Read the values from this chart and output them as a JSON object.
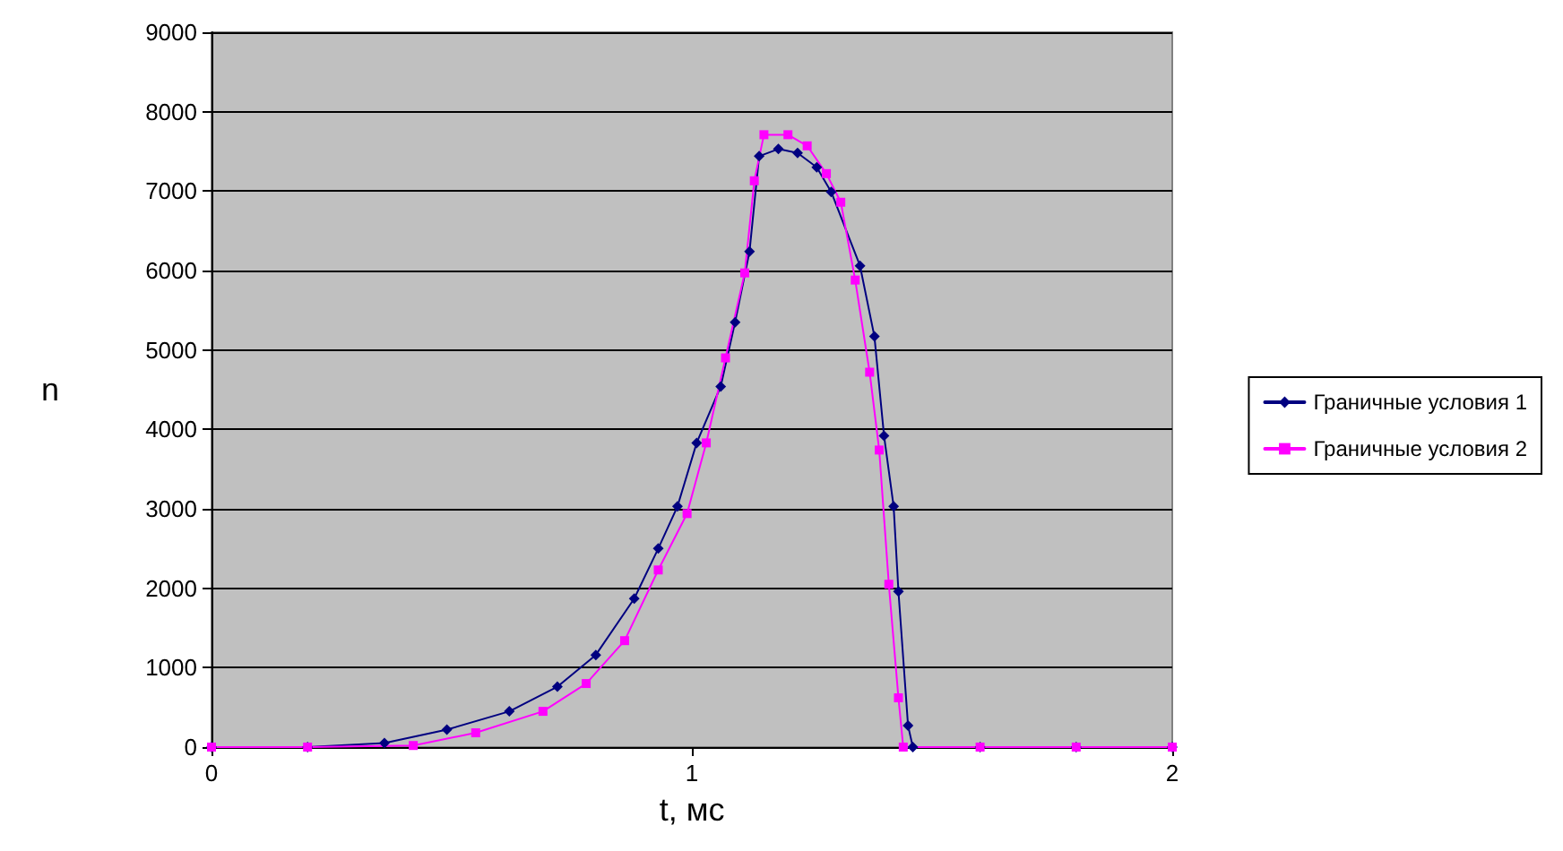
{
  "chart_data": {
    "type": "line",
    "xlabel": "t, мс",
    "ylabel": "n",
    "xlim": [
      0,
      2
    ],
    "xticks": [
      0,
      1,
      2
    ],
    "ylim": [
      0,
      9000
    ],
    "yticks": [
      0,
      1000,
      2000,
      3000,
      4000,
      5000,
      6000,
      7000,
      8000,
      9000
    ],
    "grid": "y",
    "legend": "right",
    "line_style": "solid",
    "series": [
      {
        "name": "Граничные условия 1",
        "color": "#000080",
        "marker": "diamond",
        "x": [
          0,
          0.2,
          0.36,
          0.49,
          0.62,
          0.72,
          0.8,
          0.88,
          0.93,
          0.97,
          1.01,
          1.06,
          1.09,
          1.12,
          1.14,
          1.18,
          1.22,
          1.26,
          1.29,
          1.35,
          1.38,
          1.4,
          1.42,
          1.43,
          1.45,
          1.46,
          1.6,
          1.8,
          2
        ],
        "values": [
          0,
          0,
          50,
          220,
          450,
          760,
          1160,
          1870,
          2500,
          3030,
          3830,
          4540,
          5350,
          6240,
          7440,
          7530,
          7480,
          7300,
          6990,
          6060,
          5170,
          3920,
          3030,
          1960,
          270,
          0,
          0,
          0,
          0
        ]
      },
      {
        "name": "Граничные условия 2",
        "color": "#ff00ff",
        "marker": "square",
        "x": [
          0,
          0.2,
          0.42,
          0.55,
          0.69,
          0.78,
          0.86,
          0.93,
          0.99,
          1.03,
          1.07,
          1.11,
          1.13,
          1.15,
          1.2,
          1.24,
          1.28,
          1.31,
          1.34,
          1.37,
          1.39,
          1.41,
          1.43,
          1.44,
          1.6,
          1.8,
          2
        ],
        "values": [
          0,
          0,
          20,
          180,
          450,
          800,
          1340,
          2230,
          2940,
          3830,
          4900,
          5970,
          7130,
          7710,
          7710,
          7570,
          7220,
          6860,
          5880,
          4720,
          3740,
          2050,
          620,
          0,
          0,
          0,
          0
        ]
      }
    ]
  }
}
